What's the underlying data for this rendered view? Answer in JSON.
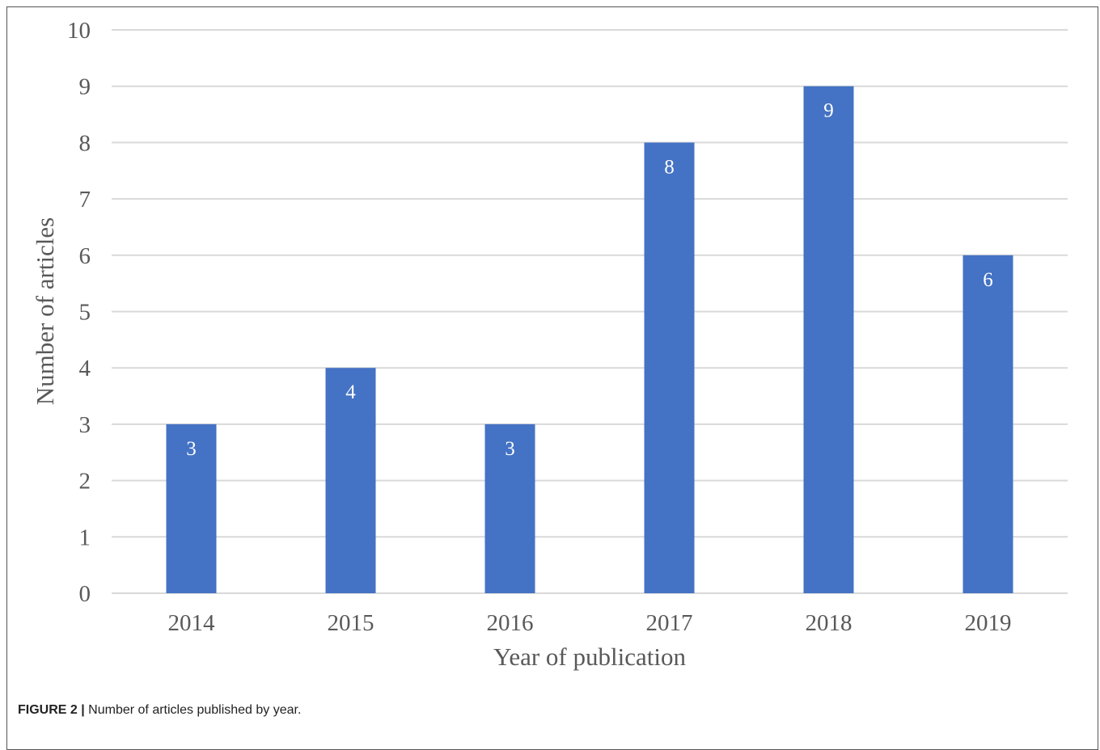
{
  "caption": {
    "label": "FIGURE 2 |",
    "text": "Number of articles published by year."
  },
  "colors": {
    "bar": "#4472c4",
    "grid": "#d9d9d9",
    "text": "#595959"
  },
  "chart_data": {
    "type": "bar",
    "categories": [
      "2014",
      "2015",
      "2016",
      "2017",
      "2018",
      "2019"
    ],
    "values": [
      3,
      4,
      3,
      8,
      9,
      6
    ],
    "data_labels": [
      "3",
      "4",
      "3",
      "8",
      "9",
      "6"
    ],
    "title": "",
    "xlabel": "Year of publication",
    "ylabel": "Number of articles",
    "ylim": [
      0,
      10
    ],
    "yticks": [
      "0",
      "1",
      "2",
      "3",
      "4",
      "5",
      "6",
      "7",
      "8",
      "9",
      "10"
    ],
    "grid": true,
    "legend": "none"
  }
}
